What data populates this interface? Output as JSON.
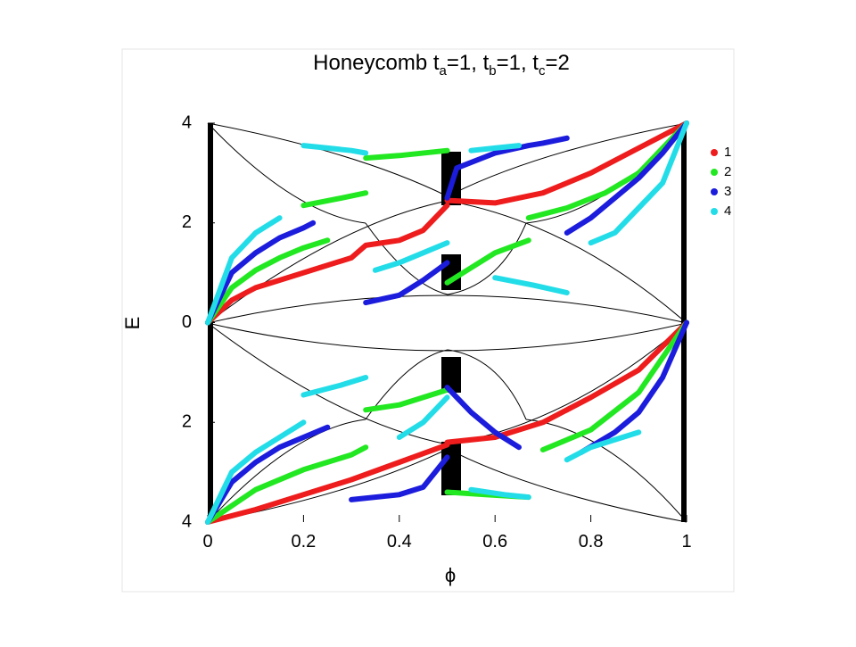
{
  "chart_data": {
    "type": "line",
    "title_parts": [
      "Honeycomb t",
      "a",
      "=1, t",
      "b",
      "=1, t",
      "c",
      "=2"
    ],
    "xlabel": "ϕ",
    "ylabel": "E",
    "xlim": [
      0,
      1
    ],
    "ylim": [
      -4,
      4
    ],
    "xticks": [
      0,
      0.2,
      0.4,
      0.6,
      0.8,
      1
    ],
    "yticks": [
      {
        "value": -4,
        "label": "4"
      },
      {
        "value": -2,
        "label": "2"
      },
      0,
      2,
      4
    ],
    "legend": "right",
    "series": [
      {
        "name": "1",
        "color": "#ee1c1c",
        "x": [
          0,
          0.05,
          0.1,
          0.2,
          0.3,
          0.33,
          0.4,
          0.45,
          0.5,
          null,
          0.5,
          0.6,
          0.7,
          0.8,
          0.9,
          1,
          null,
          0,
          0.1,
          0.2,
          0.3,
          0.4,
          0.5,
          null,
          0.5,
          0.6,
          0.7,
          0.8,
          0.9,
          1
        ],
        "values": [
          0,
          0.45,
          0.7,
          1.0,
          1.3,
          1.55,
          1.65,
          1.85,
          2.35,
          null,
          2.45,
          2.4,
          2.6,
          3.0,
          3.5,
          4,
          null,
          -4,
          -3.75,
          -3.45,
          -3.15,
          -2.8,
          -2.45,
          null,
          -2.4,
          -2.3,
          -2.0,
          -1.5,
          -0.95,
          0
        ]
      },
      {
        "name": "2",
        "color": "#22e822",
        "x": [
          0,
          0.05,
          0.1,
          0.15,
          0.2,
          0.25,
          null,
          0.2,
          0.28,
          0.33,
          null,
          0.33,
          0.4,
          0.5,
          null,
          0.5,
          0.55,
          0.6,
          0.67,
          null,
          0.67,
          0.75,
          0.83,
          0.9,
          0.95,
          1,
          null,
          0,
          0.1,
          0.2,
          0.3,
          0.33,
          null,
          0.33,
          0.4,
          0.5,
          null,
          0.5,
          0.58,
          0.67,
          null,
          0.7,
          0.8,
          0.9,
          1
        ],
        "values": [
          0,
          0.7,
          1.05,
          1.3,
          1.5,
          1.65,
          null,
          2.35,
          2.5,
          2.6,
          null,
          3.3,
          3.35,
          3.45,
          null,
          0.8,
          1.1,
          1.4,
          1.65,
          null,
          2.1,
          2.3,
          2.6,
          3.0,
          3.5,
          4,
          null,
          -4,
          -3.35,
          -2.95,
          -2.65,
          -2.5,
          null,
          -1.75,
          -1.65,
          -1.35,
          null,
          -3.4,
          -3.45,
          -3.5,
          null,
          -2.55,
          -2.15,
          -1.4,
          0
        ]
      },
      {
        "name": "3",
        "color": "#1c1cdd",
        "x": [
          0,
          0.05,
          0.1,
          0.15,
          0.2,
          0.22,
          null,
          0.33,
          0.4,
          0.45,
          0.5,
          null,
          0.5,
          0.52,
          0.6,
          0.67,
          0.7,
          0.75,
          null,
          0.75,
          0.8,
          0.85,
          0.9,
          0.95,
          1,
          null,
          0,
          0.05,
          0.1,
          0.15,
          0.2,
          0.25,
          null,
          0.3,
          0.4,
          0.45,
          0.5,
          null,
          0.5,
          0.55,
          0.6,
          0.65,
          null,
          0.78,
          0.85,
          0.9,
          0.95,
          1
        ],
        "values": [
          0,
          1.0,
          1.4,
          1.7,
          1.9,
          2.0,
          null,
          0.4,
          0.55,
          0.85,
          1.2,
          null,
          2.5,
          3.1,
          3.4,
          3.55,
          3.6,
          3.7,
          null,
          1.8,
          2.1,
          2.5,
          2.9,
          3.4,
          4,
          null,
          -4,
          -3.2,
          -2.8,
          -2.5,
          -2.3,
          -2.1,
          null,
          -3.55,
          -3.45,
          -3.3,
          -2.7,
          null,
          -1.3,
          -1.8,
          -2.2,
          -2.5,
          null,
          -2.6,
          -2.2,
          -1.8,
          -1.1,
          0
        ]
      },
      {
        "name": "4",
        "color": "#22dde8",
        "x": [
          0,
          0.05,
          0.1,
          0.15,
          null,
          0.2,
          0.25,
          0.3,
          0.33,
          null,
          0.35,
          0.4,
          0.45,
          0.5,
          null,
          0.55,
          0.6,
          0.65,
          null,
          0.6,
          0.68,
          0.75,
          null,
          0.8,
          0.85,
          0.9,
          0.95,
          1,
          null,
          0,
          0.05,
          0.1,
          0.15,
          0.2,
          null,
          0.2,
          0.28,
          0.33,
          null,
          0.4,
          0.45,
          0.5,
          null,
          0.55,
          0.62,
          0.67,
          null,
          0.75,
          0.8,
          0.85,
          0.9
        ],
        "values": [
          0,
          1.3,
          1.8,
          2.1,
          null,
          3.55,
          3.5,
          3.45,
          3.4,
          null,
          1.05,
          1.2,
          1.4,
          1.6,
          null,
          3.45,
          3.5,
          3.55,
          null,
          0.9,
          0.75,
          0.6,
          null,
          1.6,
          1.8,
          2.3,
          2.8,
          4,
          null,
          -4,
          -3.0,
          -2.6,
          -2.3,
          -2.0,
          null,
          -1.45,
          -1.25,
          -1.1,
          null,
          -2.3,
          -2.0,
          -1.5,
          null,
          -3.35,
          -3.45,
          -3.5,
          null,
          -2.75,
          -2.5,
          -2.35,
          -2.2
        ]
      }
    ]
  }
}
